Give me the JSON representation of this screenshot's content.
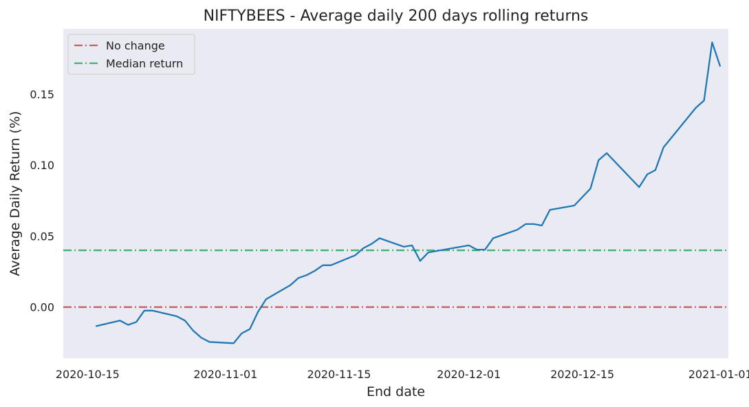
{
  "chart_data": {
    "type": "line",
    "title": "NIFTYBEES - Average daily 200 days rolling returns",
    "xlabel": "End date",
    "ylabel": "Average Daily Return (%)",
    "xlim": [
      "2020-10-12",
      "2021-01-02"
    ],
    "ylim": [
      -0.036,
      0.196
    ],
    "grid": false,
    "background": "#eaeaf2",
    "x_ticks": [
      "2020-10-15",
      "2020-11-01",
      "2020-11-15",
      "2020-12-01",
      "2020-12-15",
      "2021-01-01"
    ],
    "y_ticks": [
      "0.00",
      "0.05",
      "0.10",
      "0.15"
    ],
    "legend_position": "top-left",
    "hlines": [
      {
        "name": "No change",
        "y": 0.0,
        "color": "#cd5c5c",
        "style": "dash-dot"
      },
      {
        "name": "Median return",
        "y": 0.04,
        "color": "#3cb371",
        "style": "dash-dot"
      }
    ],
    "series": [
      {
        "color": "#1f77b4",
        "x": [
          "2020-10-16",
          "2020-10-19",
          "2020-10-20",
          "2020-10-21",
          "2020-10-22",
          "2020-10-23",
          "2020-10-26",
          "2020-10-27",
          "2020-10-28",
          "2020-10-29",
          "2020-10-30",
          "2020-11-02",
          "2020-11-03",
          "2020-11-04",
          "2020-11-05",
          "2020-11-06",
          "2020-11-09",
          "2020-11-10",
          "2020-11-11",
          "2020-11-12",
          "2020-11-13",
          "2020-11-14",
          "2020-11-17",
          "2020-11-18",
          "2020-11-19",
          "2020-11-20",
          "2020-11-23",
          "2020-11-24",
          "2020-11-25",
          "2020-11-26",
          "2020-11-27",
          "2020-12-01",
          "2020-12-02",
          "2020-12-03",
          "2020-12-04",
          "2020-12-07",
          "2020-12-08",
          "2020-12-09",
          "2020-12-10",
          "2020-12-11",
          "2020-12-14",
          "2020-12-16",
          "2020-12-17",
          "2020-12-18",
          "2020-12-22",
          "2020-12-23",
          "2020-12-24",
          "2020-12-25",
          "2020-12-29",
          "2020-12-30",
          "2020-12-31",
          "2021-01-01"
        ],
        "y": [
          -0.0135,
          -0.0095,
          -0.0125,
          -0.0105,
          -0.0025,
          -0.0025,
          -0.0065,
          -0.0095,
          -0.0165,
          -0.0215,
          -0.0245,
          -0.0255,
          -0.0185,
          -0.0155,
          -0.0035,
          0.0055,
          0.0155,
          0.0205,
          0.0225,
          0.0255,
          0.0295,
          0.0295,
          0.0365,
          0.0415,
          0.0445,
          0.0485,
          0.0425,
          0.0435,
          0.0325,
          0.0385,
          0.0395,
          0.0435,
          0.0405,
          0.0405,
          0.0485,
          0.0545,
          0.0585,
          0.0585,
          0.0575,
          0.0685,
          0.0715,
          0.0835,
          0.1035,
          0.1085,
          0.0845,
          0.0935,
          0.0965,
          0.1125,
          0.1405,
          0.1455,
          0.1865,
          0.1695
        ]
      }
    ]
  }
}
